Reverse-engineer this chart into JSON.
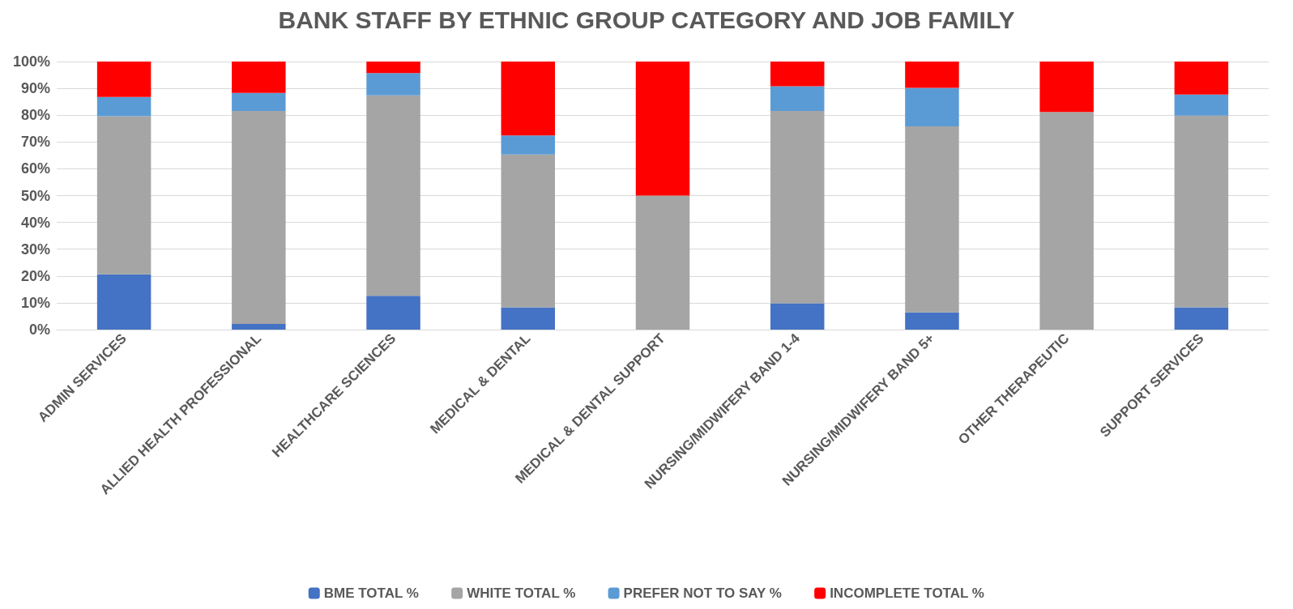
{
  "chart_data": {
    "type": "bar",
    "stacked": true,
    "title": "BANK STAFF BY ETHNIC GROUP CATEGORY AND JOB FAMILY",
    "categories": [
      "ADMIN SERVICES",
      "ALLIED HEALTH PROFESSIONAL",
      "HEALTHCARE SCIENCES",
      "MEDICAL & DENTAL",
      "MEDICAL & DENTAL SUPPORT",
      "NURSING/MIDWIFERY BAND 1-4",
      "NURSING/MIDWIFERY BAND 5+",
      "OTHER THERAPEUTIC",
      "SUPPORT SERVICES"
    ],
    "series": [
      {
        "name": "BME TOTAL %",
        "color": "#4472c4",
        "values": [
          20.6,
          2.1,
          12.6,
          8.3,
          0,
          9.8,
          6.4,
          0,
          8.3
        ]
      },
      {
        "name": "WHITE TOTAL %",
        "color": "#a5a5a5",
        "values": [
          59.0,
          79.5,
          74.8,
          57.0,
          50,
          71.8,
          69.4,
          81.2,
          71.5
        ]
      },
      {
        "name": "PREFER NOT TO SAY %",
        "color": "#5b9bd5",
        "values": [
          7.2,
          6.7,
          8.3,
          7.1,
          0,
          9.2,
          14.4,
          0,
          7.9
        ]
      },
      {
        "name": "INCOMPLETE TOTAL %",
        "color": "#ff0000",
        "values": [
          13.2,
          11.7,
          4.3,
          27.6,
          50,
          9.2,
          9.8,
          18.8,
          12.3
        ]
      }
    ],
    "ylim": [
      0,
      100
    ],
    "yticks": [
      {
        "value": 0,
        "label": "0%"
      },
      {
        "value": 10,
        "label": "10%"
      },
      {
        "value": 20,
        "label": "20%"
      },
      {
        "value": 30,
        "label": "30%"
      },
      {
        "value": 40,
        "label": "40%"
      },
      {
        "value": 50,
        "label": "50%"
      },
      {
        "value": 60,
        "label": "60%"
      },
      {
        "value": 70,
        "label": "70%"
      },
      {
        "value": 80,
        "label": "80%"
      },
      {
        "value": 90,
        "label": "90%"
      },
      {
        "value": 100,
        "label": "100%"
      }
    ],
    "grid": "y",
    "legend": "bottom"
  }
}
